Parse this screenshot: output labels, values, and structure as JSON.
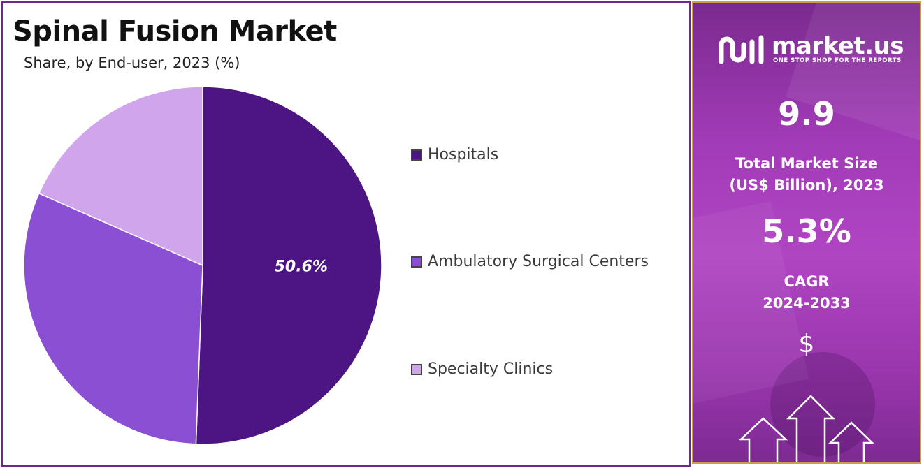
{
  "chart_data": {
    "type": "pie",
    "title": "Spinal Fusion Market",
    "subtitle": "Share, by End-user, 2023 (%)",
    "categories": [
      "Hospitals",
      "Ambulatory Surgical Centers",
      "Specialty Clinics"
    ],
    "values": [
      50.6,
      31.0,
      18.4
    ],
    "data_labels": [
      "50.6%",
      "",
      ""
    ],
    "colors": [
      "#4d1484",
      "#8a4fd2",
      "#d1a5ec"
    ],
    "legend_position": "right"
  },
  "info_panel": {
    "brand_name": "market.us",
    "brand_tagline": "ONE STOP SHOP FOR THE REPORTS",
    "market_size_value": "9.9",
    "market_size_label_line1": "Total Market Size",
    "market_size_label_line2": "(US$ Billion), 2023",
    "cagr_value": "5.3%",
    "cagr_label_line1": "CAGR",
    "cagr_label_line2": "2024-2033",
    "currency_symbol": "$",
    "icons": [
      "market-us-logo-icon",
      "dollar-icon",
      "up-arrows-icon"
    ]
  }
}
